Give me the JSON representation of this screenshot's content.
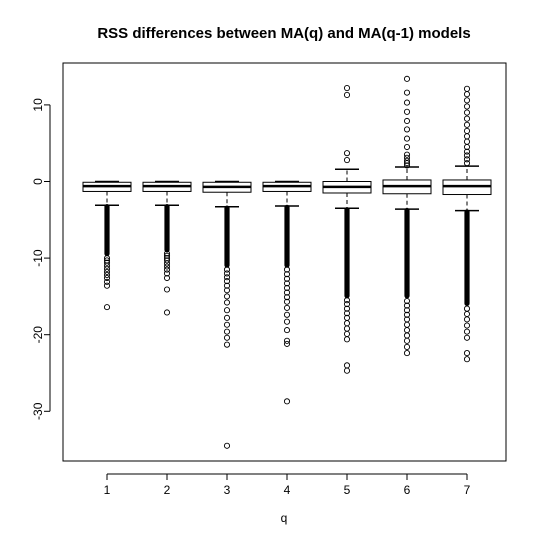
{
  "chart_data": {
    "type": "boxplot",
    "title": "RSS differences between MA(q) and MA(q-1) models",
    "xlabel": "q",
    "ylabel": "",
    "categories": [
      "1",
      "2",
      "3",
      "4",
      "5",
      "6",
      "7"
    ],
    "yticks": [
      -30,
      -20,
      -10,
      0,
      10
    ],
    "ylim": [
      -36,
      15.5
    ],
    "grid": false,
    "legend": "none",
    "boxes": [
      {
        "q": "1",
        "whisker_low": -3.1,
        "q1": -1.3,
        "median": -0.6,
        "q3": -0.1,
        "whisker_high": 0.0,
        "outliers_dense_range": [
          -9.5,
          -3.2
        ],
        "outliers": [
          -10.0,
          -10.3,
          -10.6,
          -11.0,
          -11.4,
          -11.8,
          -12.2,
          -12.6,
          -13.1,
          -13.6,
          -16.4
        ]
      },
      {
        "q": "2",
        "whisker_low": -3.1,
        "q1": -1.3,
        "median": -0.6,
        "q3": -0.1,
        "whisker_high": 0.0,
        "outliers_dense_range": [
          -9.0,
          -3.2
        ],
        "outliers": [
          -9.4,
          -9.7,
          -10.0,
          -10.3,
          -10.7,
          -11.1,
          -11.5,
          -12.0,
          -12.6,
          -14.1,
          -17.1
        ]
      },
      {
        "q": "3",
        "whisker_low": -3.3,
        "q1": -1.4,
        "median": -0.7,
        "q3": -0.1,
        "whisker_high": 0.0,
        "outliers_dense_range": [
          -11.0,
          -3.4
        ],
        "outliers": [
          -11.5,
          -12.0,
          -12.5,
          -13.0,
          -13.6,
          -14.2,
          -15.0,
          -15.8,
          -16.8,
          -17.8,
          -18.7,
          -19.6,
          -20.4,
          -21.3,
          -34.5
        ]
      },
      {
        "q": "4",
        "whisker_low": -3.2,
        "q1": -1.3,
        "median": -0.6,
        "q3": -0.1,
        "whisker_high": 0.0,
        "outliers_dense_range": [
          -11.0,
          -3.3
        ],
        "outliers": [
          -11.5,
          -12.1,
          -12.7,
          -13.3,
          -13.9,
          -14.5,
          -15.1,
          -15.7,
          -16.5,
          -17.4,
          -18.3,
          -19.4,
          -20.8,
          -21.2,
          -28.7
        ]
      },
      {
        "q": "5",
        "whisker_low": -3.5,
        "q1": -1.5,
        "median": -0.7,
        "q3": 0.0,
        "whisker_high": 1.6,
        "outliers_dense_range": [
          -15.0,
          -3.6
        ],
        "outliers": [
          -15.5,
          -16.0,
          -16.6,
          -17.2,
          -17.8,
          -18.5,
          -19.2,
          -19.9,
          -20.6,
          -24.0,
          -24.7,
          2.8,
          3.7,
          11.3,
          12.2
        ]
      },
      {
        "q": "6",
        "whisker_low": -3.6,
        "q1": -1.6,
        "median": -0.6,
        "q3": 0.2,
        "whisker_high": 1.9,
        "outliers_dense_range": [
          -15.0,
          -3.7
        ],
        "outliers": [
          -15.6,
          -16.2,
          -16.8,
          -17.4,
          -18.0,
          -18.7,
          -19.4,
          -20.1,
          -20.8,
          -21.6,
          -22.4,
          2.1,
          2.4,
          2.7,
          3.1,
          3.5,
          4.5,
          5.6,
          6.8,
          7.9,
          9.1,
          10.3,
          11.6,
          13.4
        ]
      },
      {
        "q": "7",
        "whisker_low": -3.8,
        "q1": -1.7,
        "median": -0.6,
        "q3": 0.2,
        "whisker_high": 2.0,
        "outliers_dense_range": [
          -16.0,
          -3.9
        ],
        "outliers": [
          -16.6,
          -17.3,
          -18.0,
          -18.8,
          -19.6,
          -20.4,
          -22.4,
          -23.2,
          2.4,
          2.9,
          3.4,
          3.9,
          4.5,
          5.2,
          5.9,
          6.6,
          7.4,
          8.2,
          9.0,
          9.8,
          10.6,
          11.4,
          12.1
        ]
      }
    ]
  }
}
